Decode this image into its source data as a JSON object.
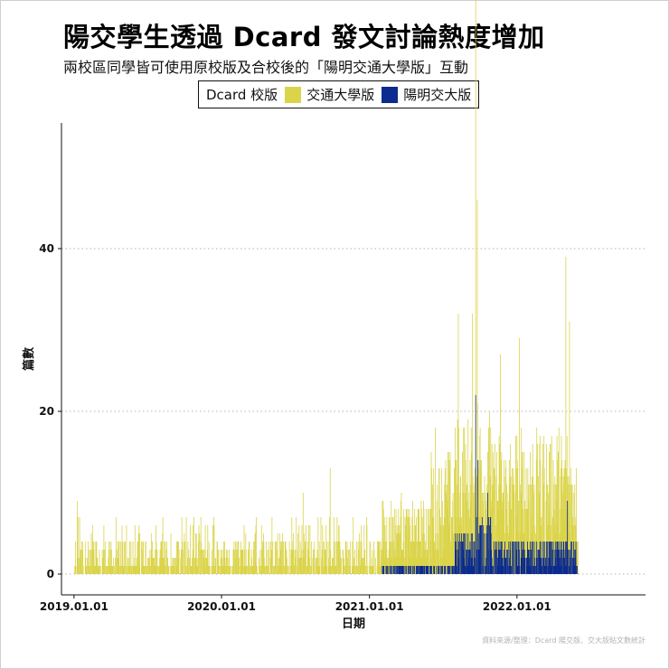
{
  "header": {
    "title": "陽交學生透過 Dcard 發文討論熱度增加",
    "subtitle": "兩校區同學皆可使用原校版及合校後的「陽明交通大學版」互動"
  },
  "legend": {
    "title": "Dcard 校版",
    "items": [
      {
        "label": "交通大學版",
        "color": "#dbd44a"
      },
      {
        "label": "陽明交大版",
        "color": "#0b2b8f"
      }
    ]
  },
  "source": "資料來源/整理：Dcard 陽交版、交大版貼文數統計",
  "chart_data": {
    "type": "bar",
    "stacked": true,
    "xlabel": "日期",
    "ylabel": "篇數",
    "x_ticks": [
      "2019.01.01",
      "2020.01.01",
      "2021.01.01",
      "2022.01.01"
    ],
    "y_ticks": [
      0,
      20,
      40
    ],
    "ylim": [
      0,
      54
    ],
    "xlim": [
      "2018-12-01",
      "2022-11-15"
    ],
    "grid": "horizontal dotted",
    "legend_position": "top",
    "series": [
      {
        "name": "交通大學版",
        "color": "#dbd44a",
        "start": "2019-01-01",
        "end": "2022-05-31",
        "peaks": [
          {
            "x": "2019-01-08",
            "y": 9
          },
          {
            "x": "2020-07-20",
            "y": 10
          },
          {
            "x": "2020-09-25",
            "y": 13
          },
          {
            "x": "2021-03-20",
            "y": 9
          },
          {
            "x": "2021-06-12",
            "y": 18
          },
          {
            "x": "2021-08-08",
            "y": 32
          },
          {
            "x": "2021-09-12",
            "y": 27
          },
          {
            "x": "2021-09-20",
            "y": 53
          },
          {
            "x": "2021-09-24",
            "y": 43
          },
          {
            "x": "2021-11-20",
            "y": 24
          },
          {
            "x": "2022-01-06",
            "y": 26
          },
          {
            "x": "2022-05-01",
            "y": 38
          },
          {
            "x": "2022-05-10",
            "y": 30
          }
        ]
      },
      {
        "name": "陽明交大版",
        "color": "#0b2b8f",
        "start": "2021-02-01",
        "end": "2022-05-31",
        "peaks": [
          {
            "x": "2021-09-20",
            "y": 22
          },
          {
            "x": "2021-09-25",
            "y": 14
          },
          {
            "x": "2021-10-20",
            "y": 10
          },
          {
            "x": "2022-05-05",
            "y": 9
          }
        ]
      }
    ]
  }
}
